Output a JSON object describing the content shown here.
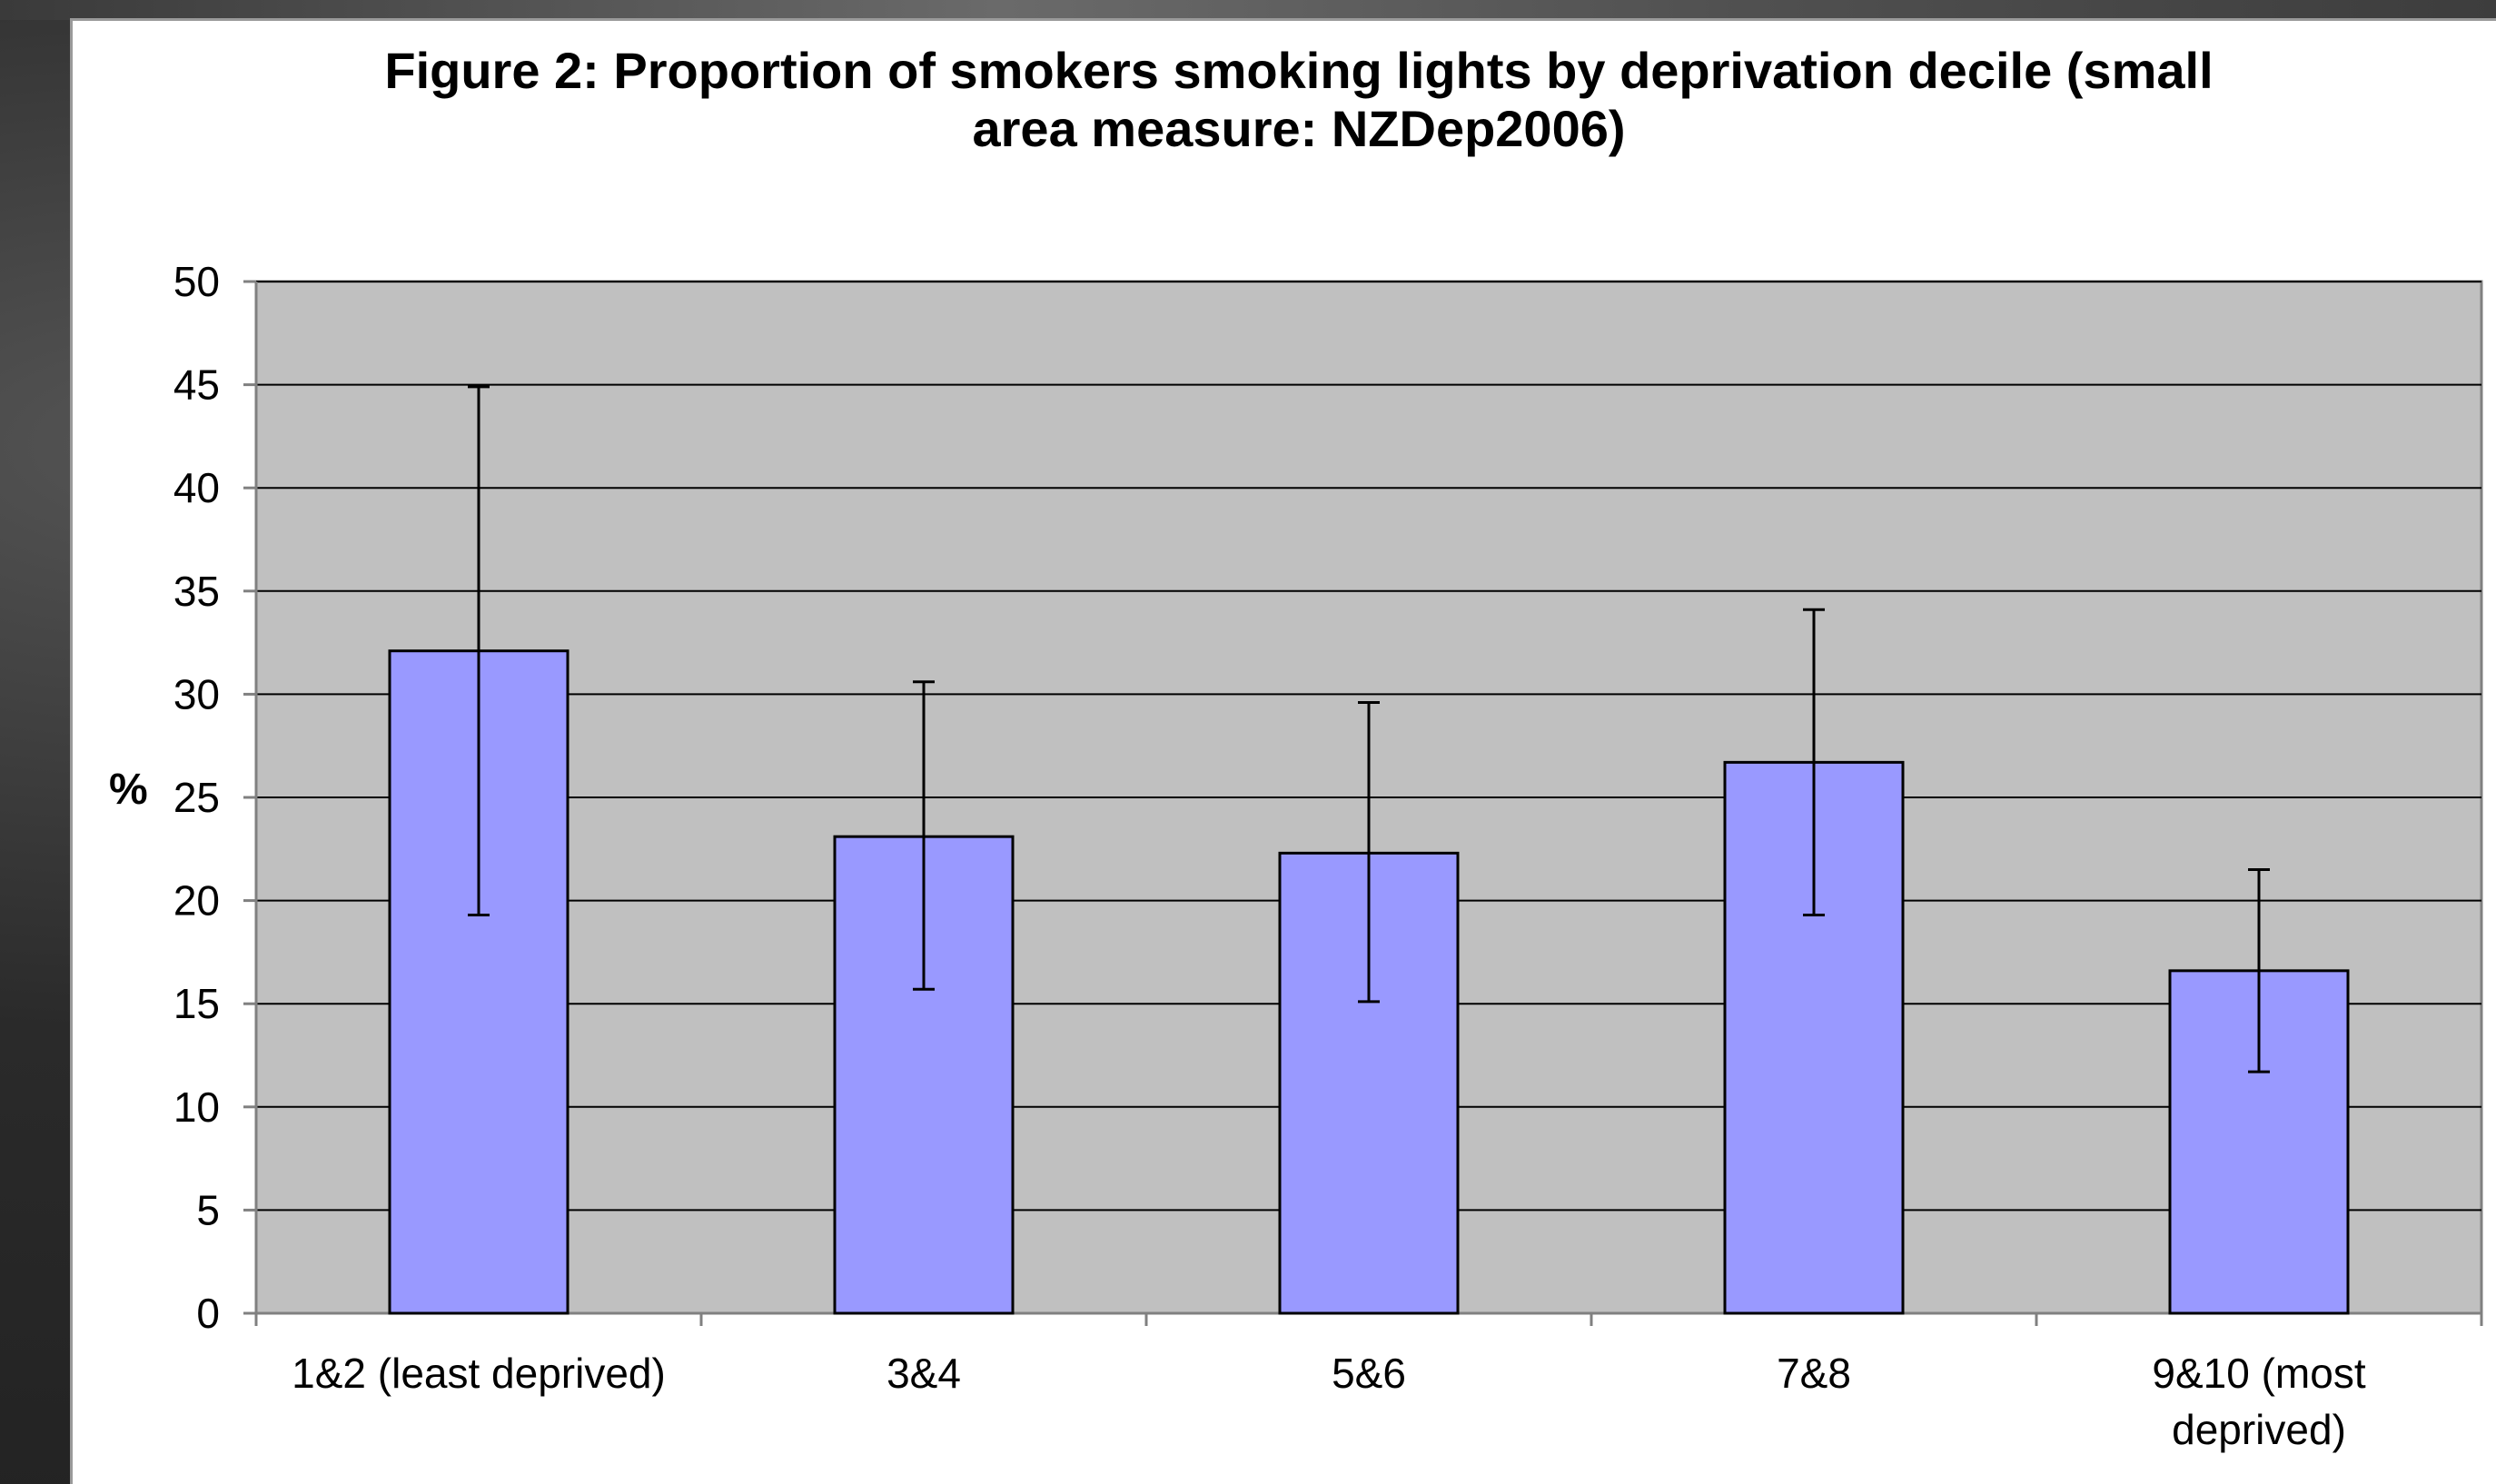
{
  "chart_data": {
    "type": "bar",
    "title": "Figure 2: Proportion of smokers smoking lights by deprivation decile (small area measure: NZDep2006)",
    "title_lines": [
      "Figure 2: Proportion of smokers smoking lights by deprivation decile (small",
      "area measure: NZDep2006)"
    ],
    "xlabel": "",
    "ylabel": "%",
    "ylim": [
      0,
      50
    ],
    "yticks": [
      "0",
      "5",
      "10",
      "15",
      "20",
      "25",
      "30",
      "35",
      "40",
      "45",
      "50"
    ],
    "categories": [
      "1&2 (least deprived)",
      "3&4",
      "5&6",
      "7&8",
      "9&10 (most deprived)"
    ],
    "category_lines": [
      [
        "1&2 (least deprived)"
      ],
      [
        "3&4"
      ],
      [
        "5&6"
      ],
      [
        "7&8"
      ],
      [
        "9&10 (most",
        "deprived)"
      ]
    ],
    "values": [
      32.1,
      23.1,
      22.3,
      26.7,
      16.6
    ],
    "error_low": [
      19.3,
      15.7,
      15.1,
      19.3,
      11.7
    ],
    "error_high": [
      44.9,
      30.6,
      29.6,
      34.1,
      21.5
    ],
    "grid": true,
    "legend": "none",
    "colors": {
      "bar_fill": "#9999ff",
      "bar_stroke": "#000000",
      "plot_background": "#c0c0c0",
      "gridline": "#000000",
      "error_bar": "#000000"
    }
  }
}
